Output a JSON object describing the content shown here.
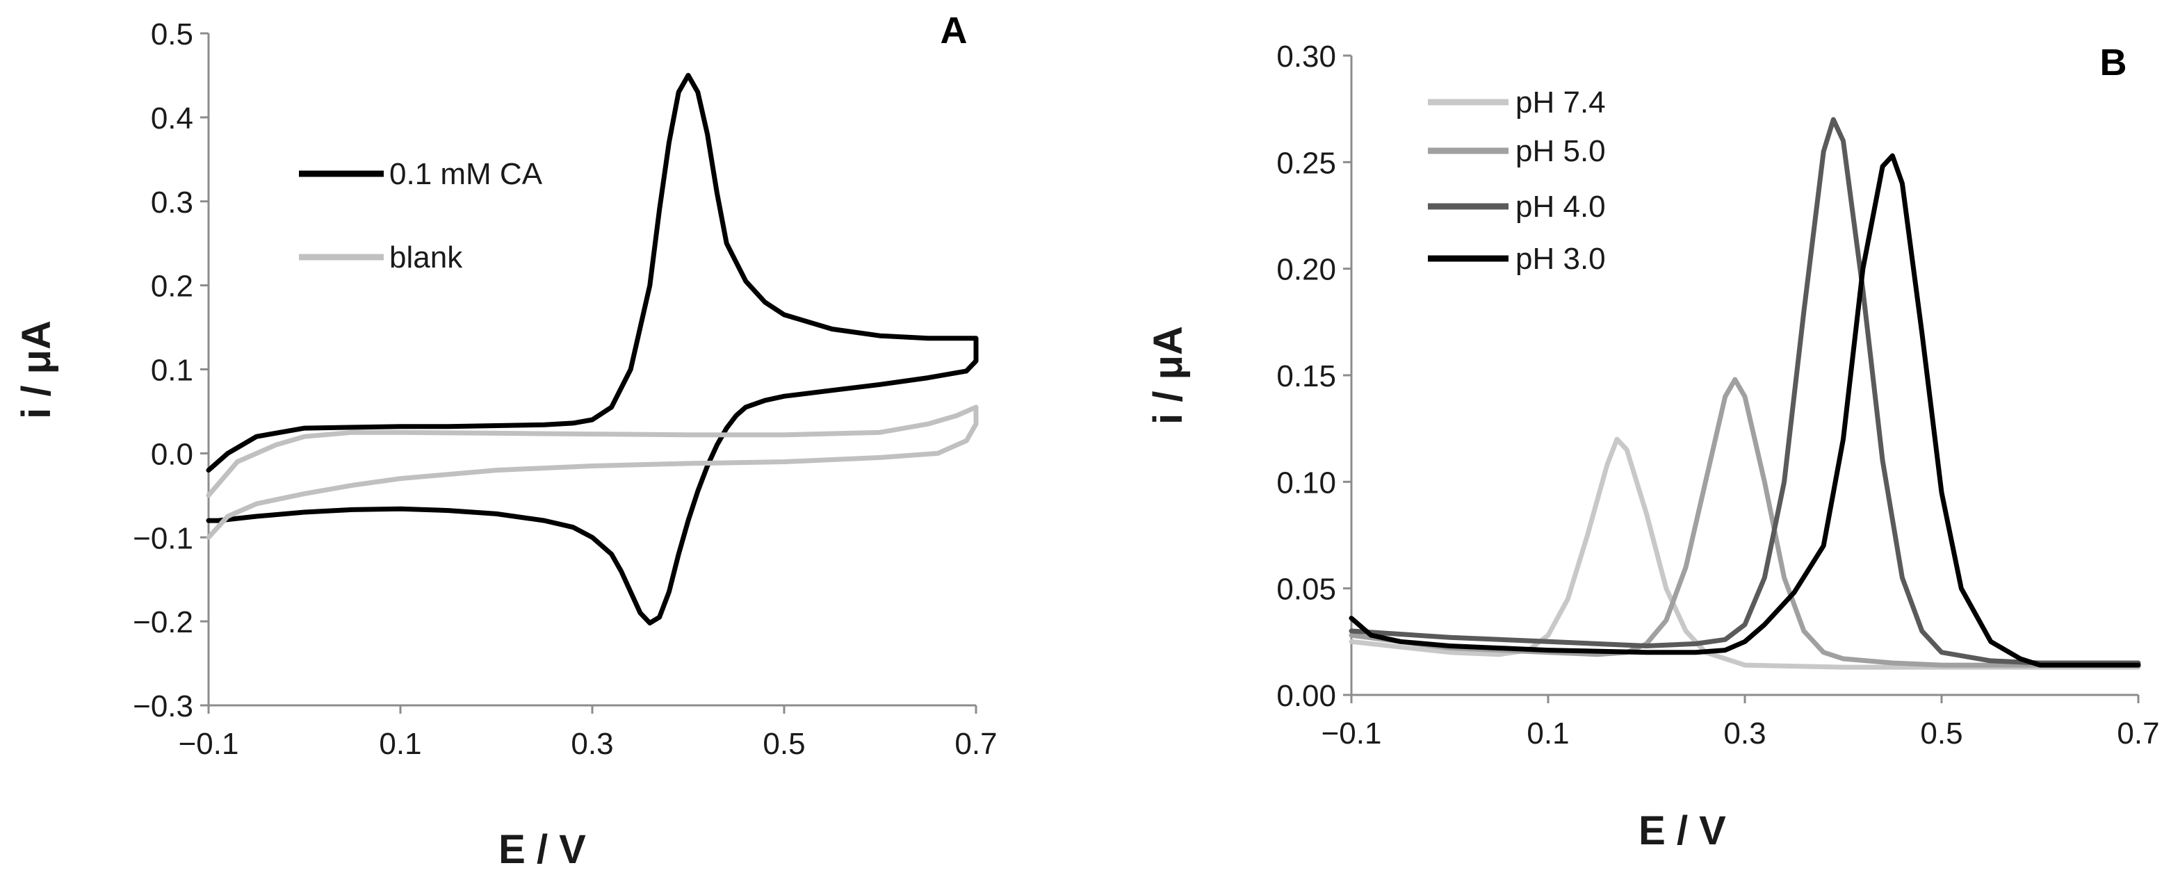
{
  "chart_data": [
    {
      "id": "A",
      "type": "line",
      "panel_label": "A",
      "xlabel": "E / V",
      "ylabel": "i / μA",
      "xlim": [
        -0.1,
        0.7
      ],
      "ylim": [
        -0.3,
        0.5
      ],
      "xticks": [
        -0.1,
        0.1,
        0.3,
        0.5,
        0.7
      ],
      "xtick_labels": [
        "−0.1",
        "0.1",
        "0.3",
        "0.5",
        "0.7"
      ],
      "yticks": [
        -0.3,
        -0.2,
        -0.1,
        0.0,
        0.1,
        0.2,
        0.3,
        0.4,
        0.5
      ],
      "ytick_labels": [
        "−0.3",
        "−0.2",
        "−0.1",
        "0.0",
        "0.1",
        "0.2",
        "0.3",
        "0.4",
        "0.5"
      ],
      "grid": false,
      "legend_position": "upper-left",
      "series": [
        {
          "name": "0.1 mM CA",
          "color": "#000000",
          "x": [
            -0.1,
            -0.08,
            -0.05,
            0.0,
            0.05,
            0.1,
            0.15,
            0.2,
            0.25,
            0.28,
            0.3,
            0.32,
            0.34,
            0.36,
            0.37,
            0.38,
            0.39,
            0.4,
            0.41,
            0.42,
            0.43,
            0.44,
            0.46,
            0.48,
            0.5,
            0.55,
            0.6,
            0.65,
            0.7,
            0.7,
            0.69,
            0.65,
            0.6,
            0.55,
            0.5,
            0.48,
            0.46,
            0.45,
            0.44,
            0.43,
            0.42,
            0.41,
            0.4,
            0.39,
            0.38,
            0.37,
            0.36,
            0.35,
            0.34,
            0.33,
            0.32,
            0.3,
            0.28,
            0.25,
            0.2,
            0.15,
            0.1,
            0.05,
            0.0,
            -0.05,
            -0.09,
            -0.1
          ],
          "y": [
            -0.02,
            0.0,
            0.02,
            0.03,
            0.031,
            0.032,
            0.032,
            0.033,
            0.034,
            0.036,
            0.04,
            0.055,
            0.1,
            0.2,
            0.29,
            0.37,
            0.43,
            0.45,
            0.43,
            0.38,
            0.31,
            0.25,
            0.205,
            0.18,
            0.165,
            0.148,
            0.14,
            0.137,
            0.137,
            0.11,
            0.098,
            0.09,
            0.082,
            0.075,
            0.068,
            0.063,
            0.055,
            0.045,
            0.03,
            0.01,
            -0.015,
            -0.045,
            -0.08,
            -0.12,
            -0.165,
            -0.195,
            -0.202,
            -0.19,
            -0.165,
            -0.14,
            -0.12,
            -0.1,
            -0.088,
            -0.08,
            -0.072,
            -0.068,
            -0.066,
            -0.067,
            -0.07,
            -0.075,
            -0.08,
            -0.08
          ]
        },
        {
          "name": "blank",
          "color": "#c0c0c0",
          "x": [
            -0.1,
            -0.07,
            -0.03,
            0.0,
            0.05,
            0.1,
            0.2,
            0.3,
            0.4,
            0.5,
            0.6,
            0.65,
            0.68,
            0.7,
            0.7,
            0.69,
            0.66,
            0.6,
            0.5,
            0.4,
            0.3,
            0.2,
            0.1,
            0.05,
            0.0,
            -0.05,
            -0.08,
            -0.1
          ],
          "y": [
            -0.05,
            -0.01,
            0.01,
            0.02,
            0.025,
            0.025,
            0.024,
            0.023,
            0.022,
            0.022,
            0.025,
            0.035,
            0.045,
            0.055,
            0.035,
            0.015,
            0.0,
            -0.005,
            -0.01,
            -0.012,
            -0.015,
            -0.02,
            -0.03,
            -0.038,
            -0.048,
            -0.06,
            -0.075,
            -0.1
          ]
        }
      ]
    },
    {
      "id": "B",
      "type": "line",
      "panel_label": "B",
      "xlabel": "E / V",
      "ylabel": "i / μA",
      "xlim": [
        -0.1,
        0.7
      ],
      "ylim": [
        0.0,
        0.3
      ],
      "xticks": [
        -0.1,
        0.1,
        0.3,
        0.5,
        0.7
      ],
      "xtick_labels": [
        "−0.1",
        "0.1",
        "0.3",
        "0.5",
        "0.7"
      ],
      "yticks": [
        0.0,
        0.05,
        0.1,
        0.15,
        0.2,
        0.25,
        0.3
      ],
      "ytick_labels": [
        "0.00",
        "0.05",
        "0.10",
        "0.15",
        "0.20",
        "0.25",
        "0.30"
      ],
      "grid": false,
      "legend_position": "upper-left",
      "series": [
        {
          "name": "pH 7.4",
          "color": "#c8c8c8",
          "x": [
            -0.1,
            0.0,
            0.05,
            0.08,
            0.1,
            0.12,
            0.14,
            0.16,
            0.17,
            0.18,
            0.2,
            0.22,
            0.24,
            0.26,
            0.3,
            0.4,
            0.5,
            0.6,
            0.7
          ],
          "y": [
            0.025,
            0.02,
            0.019,
            0.021,
            0.028,
            0.045,
            0.075,
            0.108,
            0.12,
            0.115,
            0.085,
            0.05,
            0.03,
            0.02,
            0.014,
            0.013,
            0.013,
            0.013,
            0.013
          ]
        },
        {
          "name": "pH 5.0",
          "color": "#a0a0a0",
          "x": [
            -0.1,
            0.0,
            0.1,
            0.15,
            0.18,
            0.2,
            0.22,
            0.24,
            0.26,
            0.28,
            0.29,
            0.3,
            0.32,
            0.34,
            0.36,
            0.38,
            0.4,
            0.45,
            0.5,
            0.6,
            0.7
          ],
          "y": [
            0.028,
            0.022,
            0.02,
            0.019,
            0.02,
            0.024,
            0.035,
            0.06,
            0.1,
            0.14,
            0.148,
            0.14,
            0.1,
            0.055,
            0.03,
            0.02,
            0.017,
            0.015,
            0.014,
            0.014,
            0.014
          ]
        },
        {
          "name": "pH 4.0",
          "color": "#5a5a5a",
          "x": [
            -0.1,
            0.0,
            0.1,
            0.2,
            0.25,
            0.28,
            0.3,
            0.32,
            0.34,
            0.36,
            0.38,
            0.39,
            0.4,
            0.42,
            0.44,
            0.46,
            0.48,
            0.5,
            0.55,
            0.6,
            0.7
          ],
          "y": [
            0.03,
            0.027,
            0.025,
            0.023,
            0.024,
            0.026,
            0.033,
            0.055,
            0.1,
            0.18,
            0.255,
            0.27,
            0.26,
            0.19,
            0.11,
            0.055,
            0.03,
            0.02,
            0.016,
            0.015,
            0.015
          ]
        },
        {
          "name": "pH 3.0",
          "color": "#000000",
          "x": [
            -0.1,
            -0.08,
            -0.05,
            0.0,
            0.1,
            0.2,
            0.25,
            0.28,
            0.3,
            0.32,
            0.35,
            0.38,
            0.4,
            0.42,
            0.44,
            0.45,
            0.46,
            0.48,
            0.5,
            0.52,
            0.55,
            0.58,
            0.6,
            0.7
          ],
          "y": [
            0.036,
            0.028,
            0.025,
            0.023,
            0.021,
            0.02,
            0.02,
            0.021,
            0.025,
            0.033,
            0.048,
            0.07,
            0.12,
            0.2,
            0.248,
            0.253,
            0.24,
            0.17,
            0.095,
            0.05,
            0.025,
            0.017,
            0.014,
            0.014
          ]
        }
      ]
    }
  ]
}
